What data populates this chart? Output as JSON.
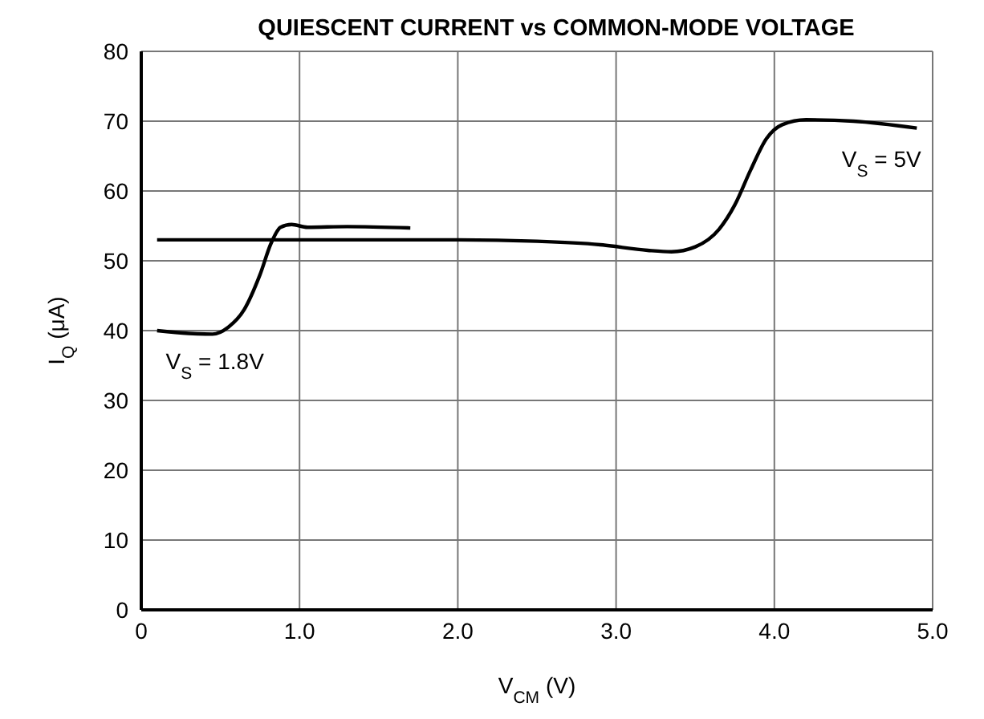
{
  "chart_data": {
    "type": "line",
    "title": "QUIESCENT CURRENT vs COMMON-MODE VOLTAGE",
    "xlabel": "V$_{CM}$ (V)",
    "ylabel": "I$_{Q}$ (μA)",
    "xlim": [
      0,
      5
    ],
    "xticks": [
      {
        "value": 0,
        "label": "0"
      },
      {
        "value": 1,
        "label": "1.0"
      },
      {
        "value": 2,
        "label": "2.0"
      },
      {
        "value": 3,
        "label": "3.0"
      },
      {
        "value": 4,
        "label": "4.0"
      },
      {
        "value": 5,
        "label": "5.0"
      }
    ],
    "ylim": [
      0,
      80
    ],
    "yticks": [
      0,
      10,
      20,
      30,
      40,
      50,
      60,
      70,
      80
    ],
    "grid": true,
    "legend": false,
    "marker": "none",
    "line_style": "solid",
    "series": [
      {
        "name": "V$_{S}$ = 1.8V",
        "color": "#000000",
        "x": [
          0.1,
          0.3,
          0.45,
          0.55,
          0.65,
          0.75,
          0.82,
          0.88,
          0.95,
          1.05,
          1.3,
          1.7
        ],
        "values": [
          40,
          39.6,
          39.5,
          40.5,
          43,
          48,
          52.5,
          54.8,
          55.2,
          54.8,
          54.9,
          54.7
        ]
      },
      {
        "name": "V$_{S}$ = 5V",
        "color": "#000000",
        "x": [
          0.1,
          1,
          2,
          2.5,
          2.9,
          3.2,
          3.35,
          3.5,
          3.65,
          3.75,
          3.85,
          3.95,
          4.05,
          4.2,
          4.5,
          4.9
        ],
        "values": [
          53,
          53,
          53,
          52.8,
          52.3,
          51.5,
          51.3,
          52,
          54.5,
          58,
          63,
          67.5,
          69.5,
          70.2,
          70,
          69
        ]
      }
    ]
  }
}
